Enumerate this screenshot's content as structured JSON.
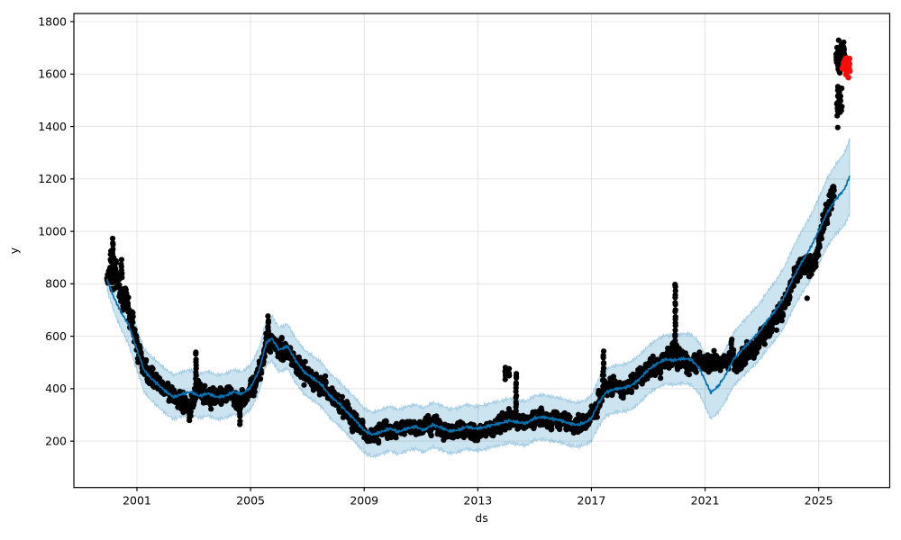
{
  "chart_data": {
    "type": "scatter",
    "subtype": "time-series-forecast-with-uncertainty-band",
    "title": "",
    "xlabel": "ds",
    "ylabel": "y",
    "x_ticks": [
      2001,
      2005,
      2009,
      2013,
      2017,
      2021,
      2025
    ],
    "y_ticks": [
      200,
      400,
      600,
      800,
      1000,
      1200,
      1400,
      1600,
      1800
    ],
    "xlim": [
      1998.78,
      2027.5
    ],
    "ylim": [
      23,
      1831
    ],
    "grid": true,
    "legend_position": "none",
    "style": {
      "line_color": "#0072b2",
      "band_color": "#0072b2",
      "band_opacity": 0.2,
      "band_edge_opacity": 0.28,
      "point_color": "#000000",
      "highlight_color": "#f50d0d",
      "grid_color": "#e4e4e4",
      "spine_color": "#000000",
      "marker_radius": 3.1
    },
    "series": [
      {
        "name": "forecast-yhat-with-interval",
        "kind": "line+band",
        "keypoints_format": [
          "year",
          "yhat",
          "lower",
          "upper"
        ],
        "keypoints": [
          [
            1999.95,
            815,
            775,
            855
          ],
          [
            2000.2,
            745,
            690,
            800
          ],
          [
            2000.45,
            690,
            625,
            755
          ],
          [
            2000.7,
            645,
            570,
            720
          ],
          [
            2001.0,
            550,
            470,
            630
          ],
          [
            2001.25,
            470,
            388,
            552
          ],
          [
            2001.5,
            440,
            356,
            524
          ],
          [
            2001.75,
            415,
            330,
            500
          ],
          [
            2002.0,
            390,
            305,
            475
          ],
          [
            2002.3,
            368,
            283,
            453
          ],
          [
            2002.6,
            380,
            295,
            465
          ],
          [
            2002.9,
            388,
            303,
            473
          ],
          [
            2003.2,
            372,
            287,
            457
          ],
          [
            2003.5,
            382,
            297,
            467
          ],
          [
            2003.8,
            368,
            283,
            453
          ],
          [
            2004.1,
            372,
            287,
            457
          ],
          [
            2004.4,
            388,
            303,
            473
          ],
          [
            2004.7,
            380,
            295,
            465
          ],
          [
            2005.0,
            405,
            320,
            490
          ],
          [
            2005.3,
            470,
            385,
            555
          ],
          [
            2005.55,
            575,
            490,
            660
          ],
          [
            2005.75,
            592,
            507,
            677
          ],
          [
            2006.0,
            548,
            463,
            633
          ],
          [
            2006.3,
            562,
            477,
            647
          ],
          [
            2006.6,
            505,
            420,
            590
          ],
          [
            2006.9,
            462,
            377,
            547
          ],
          [
            2007.2,
            440,
            355,
            525
          ],
          [
            2007.5,
            415,
            330,
            500
          ],
          [
            2007.8,
            372,
            287,
            457
          ],
          [
            2008.1,
            345,
            260,
            430
          ],
          [
            2008.4,
            310,
            225,
            395
          ],
          [
            2008.7,
            278,
            193,
            363
          ],
          [
            2009.0,
            240,
            155,
            325
          ],
          [
            2009.3,
            225,
            140,
            310
          ],
          [
            2009.6,
            235,
            150,
            320
          ],
          [
            2009.9,
            248,
            163,
            333
          ],
          [
            2010.2,
            235,
            150,
            320
          ],
          [
            2010.5,
            248,
            163,
            333
          ],
          [
            2010.8,
            255,
            170,
            340
          ],
          [
            2011.1,
            242,
            157,
            327
          ],
          [
            2011.4,
            262,
            177,
            347
          ],
          [
            2011.7,
            252,
            167,
            337
          ],
          [
            2012.0,
            238,
            153,
            323
          ],
          [
            2012.3,
            242,
            157,
            327
          ],
          [
            2012.6,
            255,
            170,
            340
          ],
          [
            2012.9,
            248,
            163,
            333
          ],
          [
            2013.2,
            252,
            167,
            337
          ],
          [
            2013.5,
            262,
            177,
            347
          ],
          [
            2013.8,
            268,
            183,
            353
          ],
          [
            2014.1,
            278,
            193,
            363
          ],
          [
            2014.4,
            272,
            187,
            357
          ],
          [
            2014.7,
            268,
            183,
            353
          ],
          [
            2015.0,
            288,
            203,
            373
          ],
          [
            2015.3,
            292,
            207,
            377
          ],
          [
            2015.6,
            285,
            200,
            370
          ],
          [
            2015.9,
            280,
            195,
            365
          ],
          [
            2016.2,
            268,
            183,
            353
          ],
          [
            2016.5,
            262,
            177,
            347
          ],
          [
            2016.8,
            272,
            187,
            357
          ],
          [
            2017.0,
            288,
            200,
            376
          ],
          [
            2017.25,
            345,
            255,
            435
          ],
          [
            2017.5,
            385,
            295,
            475
          ],
          [
            2017.8,
            398,
            308,
            488
          ],
          [
            2018.1,
            402,
            312,
            492
          ],
          [
            2018.4,
            412,
            320,
            504
          ],
          [
            2018.7,
            438,
            346,
            530
          ],
          [
            2019.0,
            472,
            380,
            564
          ],
          [
            2019.3,
            495,
            403,
            587
          ],
          [
            2019.6,
            512,
            418,
            606
          ],
          [
            2019.9,
            508,
            414,
            602
          ],
          [
            2020.2,
            515,
            420,
            610
          ],
          [
            2020.5,
            512,
            415,
            609
          ],
          [
            2020.8,
            478,
            380,
            576
          ],
          [
            2021.0,
            432,
            332,
            532
          ],
          [
            2021.2,
            385,
            285,
            485
          ],
          [
            2021.45,
            408,
            308,
            508
          ],
          [
            2021.7,
            448,
            348,
            548
          ],
          [
            2022.0,
            512,
            410,
            614
          ],
          [
            2022.3,
            548,
            444,
            652
          ],
          [
            2022.6,
            582,
            476,
            688
          ],
          [
            2022.9,
            615,
            508,
            722
          ],
          [
            2023.2,
            662,
            552,
            772
          ],
          [
            2023.5,
            702,
            590,
            814
          ],
          [
            2023.8,
            752,
            638,
            866
          ],
          [
            2024.1,
            822,
            705,
            939
          ],
          [
            2024.4,
            882,
            762,
            1002
          ],
          [
            2024.7,
            935,
            812,
            1058
          ],
          [
            2025.0,
            1002,
            875,
            1129
          ],
          [
            2025.3,
            1072,
            942,
            1202
          ],
          [
            2025.6,
            1122,
            988,
            1256
          ],
          [
            2025.9,
            1160,
            1022,
            1298
          ],
          [
            2026.1,
            1212,
            1068,
            1356
          ]
        ]
      },
      {
        "name": "observed-points",
        "kind": "scatter",
        "path_format": [
          "year",
          "center",
          "half_spread"
        ],
        "path": [
          [
            1999.95,
            810,
            45
          ],
          [
            2000.1,
            860,
            100
          ],
          [
            2000.3,
            830,
            110
          ],
          [
            2000.5,
            760,
            110
          ],
          [
            2000.75,
            690,
            80
          ],
          [
            2001.0,
            555,
            75
          ],
          [
            2001.25,
            480,
            55
          ],
          [
            2001.5,
            445,
            50
          ],
          [
            2001.75,
            420,
            45
          ],
          [
            2002.0,
            390,
            40
          ],
          [
            2002.3,
            370,
            45
          ],
          [
            2002.6,
            345,
            50
          ],
          [
            2002.85,
            335,
            60
          ],
          [
            2003.1,
            400,
            55
          ],
          [
            2003.35,
            380,
            45
          ],
          [
            2003.6,
            360,
            50
          ],
          [
            2003.85,
            375,
            45
          ],
          [
            2004.1,
            380,
            40
          ],
          [
            2004.35,
            390,
            45
          ],
          [
            2004.6,
            330,
            60
          ],
          [
            2004.85,
            375,
            45
          ],
          [
            2005.1,
            410,
            45
          ],
          [
            2005.35,
            480,
            60
          ],
          [
            2005.6,
            600,
            55
          ],
          [
            2005.85,
            570,
            50
          ],
          [
            2006.1,
            545,
            55
          ],
          [
            2006.4,
            525,
            55
          ],
          [
            2006.7,
            475,
            55
          ],
          [
            2007.0,
            448,
            50
          ],
          [
            2007.3,
            435,
            55
          ],
          [
            2007.6,
            400,
            55
          ],
          [
            2007.9,
            365,
            50
          ],
          [
            2008.2,
            340,
            50
          ],
          [
            2008.5,
            300,
            50
          ],
          [
            2008.8,
            260,
            45
          ],
          [
            2009.1,
            220,
            40
          ],
          [
            2009.4,
            222,
            35
          ],
          [
            2009.7,
            245,
            38
          ],
          [
            2010.0,
            240,
            38
          ],
          [
            2010.3,
            245,
            38
          ],
          [
            2010.6,
            258,
            38
          ],
          [
            2010.9,
            248,
            38
          ],
          [
            2011.2,
            262,
            40
          ],
          [
            2011.5,
            262,
            45
          ],
          [
            2011.8,
            235,
            38
          ],
          [
            2012.1,
            232,
            35
          ],
          [
            2012.4,
            250,
            38
          ],
          [
            2012.7,
            242,
            35
          ],
          [
            2013.0,
            230,
            35
          ],
          [
            2013.3,
            242,
            38
          ],
          [
            2013.6,
            252,
            38
          ],
          [
            2013.9,
            272,
            50
          ],
          [
            2014.2,
            285,
            55
          ],
          [
            2014.5,
            272,
            42
          ],
          [
            2014.8,
            282,
            40
          ],
          [
            2015.1,
            288,
            40
          ],
          [
            2015.4,
            280,
            38
          ],
          [
            2015.7,
            288,
            38
          ],
          [
            2016.0,
            278,
            38
          ],
          [
            2016.3,
            265,
            38
          ],
          [
            2016.6,
            262,
            38
          ],
          [
            2016.9,
            278,
            40
          ],
          [
            2017.1,
            300,
            50
          ],
          [
            2017.35,
            390,
            70
          ],
          [
            2017.6,
            408,
            50
          ],
          [
            2017.9,
            395,
            48
          ],
          [
            2018.2,
            408,
            50
          ],
          [
            2018.5,
            432,
            55
          ],
          [
            2018.8,
            458,
            55
          ],
          [
            2019.1,
            475,
            52
          ],
          [
            2019.4,
            495,
            55
          ],
          [
            2019.7,
            520,
            58
          ],
          [
            2020.0,
            530,
            75
          ],
          [
            2020.3,
            505,
            58
          ],
          [
            2020.6,
            502,
            55
          ],
          [
            2020.9,
            498,
            52
          ],
          [
            2021.2,
            495,
            52
          ],
          [
            2021.5,
            500,
            52
          ],
          [
            2021.8,
            512,
            55
          ],
          [
            2022.1,
            498,
            48
          ],
          [
            2022.4,
            522,
            50
          ],
          [
            2022.7,
            548,
            55
          ],
          [
            2023.0,
            585,
            55
          ],
          [
            2023.3,
            635,
            58
          ],
          [
            2023.6,
            680,
            60
          ],
          [
            2023.9,
            740,
            65
          ],
          [
            2024.15,
            838,
            60
          ],
          [
            2024.4,
            878,
            62
          ],
          [
            2024.65,
            852,
            65
          ],
          [
            2024.9,
            905,
            55
          ],
          [
            2025.1,
            985,
            60
          ],
          [
            2025.3,
            1080,
            75
          ],
          [
            2025.45,
            1140,
            85
          ],
          [
            2025.55,
            1160,
            75
          ]
        ],
        "spikes_format": [
          "year",
          "value_from",
          "value_to",
          "n_points"
        ],
        "spikes": [
          [
            2000.15,
            900,
            972,
            7
          ],
          [
            2000.45,
            820,
            888,
            6
          ],
          [
            2002.84,
            282,
            330,
            5
          ],
          [
            2003.08,
            415,
            540,
            11
          ],
          [
            2004.62,
            268,
            315,
            5
          ],
          [
            2005.62,
            600,
            672,
            8
          ],
          [
            2013.97,
            432,
            482,
            5
          ],
          [
            2014.1,
            452,
            475,
            3
          ],
          [
            2014.35,
            300,
            462,
            14
          ],
          [
            2017.42,
            450,
            543,
            8
          ],
          [
            2019.95,
            570,
            800,
            18
          ],
          [
            2021.93,
            532,
            588,
            6
          ]
        ],
        "clusters_format": [
          "year_from",
          "year_to",
          "value_from",
          "value_to",
          "n_points"
        ],
        "clusters": [
          [
            2025.63,
            2025.82,
            1438,
            1560,
            32
          ],
          [
            2025.6,
            2025.98,
            1597,
            1742,
            50
          ]
        ],
        "isolated_points": [
          [
            2025.65,
            1441
          ],
          [
            2025.67,
            1396
          ],
          [
            2024.59,
            745
          ]
        ]
      },
      {
        "name": "highlighted-recent-points",
        "kind": "scatter",
        "clusters_format": [
          "year_from",
          "year_to",
          "value_from",
          "value_to",
          "n_points"
        ],
        "clusters": [
          [
            2025.83,
            2026.1,
            1582,
            1688,
            30
          ]
        ]
      }
    ]
  }
}
